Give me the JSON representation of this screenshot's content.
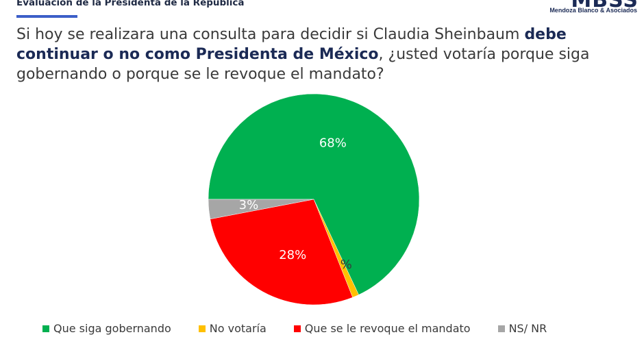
{
  "header": {
    "title": "Evaluación de la Presidenta de la República",
    "logo_mark": "MBSS",
    "logo_sub": "Mendoza Blanco & Asociados"
  },
  "question": {
    "part1": "Si hoy se realizara una consulta para decidir si Claudia Sheinbaum ",
    "bold": "debe continuar o no como Presidenta de México",
    "part2": ", ¿usted votaría porque siga gobernando o porque se le revoque el mandato?"
  },
  "chart_data": {
    "type": "pie",
    "title": "",
    "start_angle_deg": 180,
    "direction": "clockwise",
    "slices": [
      {
        "label": "Que siga gobernando",
        "value": 68,
        "display": "68%",
        "color": "#00b050",
        "label_color": "#ffffff"
      },
      {
        "label": "No votaría",
        "value": 1,
        "display": "1%",
        "color": "#ffc000",
        "label_color": "#3a3a3a"
      },
      {
        "label": "Que se le revoque el mandato",
        "value": 28,
        "display": "28%",
        "color": "#ff0000",
        "label_color": "#ffffff"
      },
      {
        "label": "NS/ NR",
        "value": 3,
        "display": "3%",
        "color": "#a6a6a6",
        "label_color": "#ffffff"
      }
    ],
    "legend_position": "bottom"
  }
}
